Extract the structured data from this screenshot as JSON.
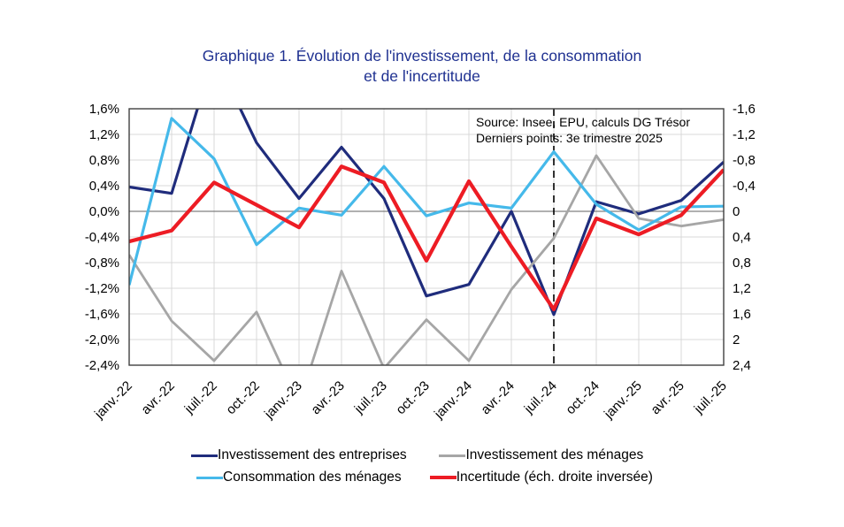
{
  "title": {
    "line1": "Graphique 1. Évolution de l'investissement, de la consommation",
    "line2": "et de l'incertitude"
  },
  "source_box": {
    "line1": "Source: Insee, EPU, calculs DG Trésor",
    "line2": "Derniers points: 3e trimestre 2025"
  },
  "chart_data": {
    "type": "line",
    "categories": [
      "janv.-22",
      "avr.-22",
      "juil.-22",
      "oct.-22",
      "janv.-23",
      "avr.-23",
      "juil.-23",
      "oct.-23",
      "janv.-24",
      "avr.-24",
      "juil.-24",
      "oct.-24",
      "janv.-25",
      "avr.-25",
      "juil.-25"
    ],
    "left_axis": {
      "max": 1.6,
      "min": -2.4,
      "step": 0.4,
      "tick_labels": [
        "1,6%",
        "1,2%",
        "0,8%",
        "0,4%",
        "0,0%",
        "-0,4%",
        "-0,8%",
        "-1,2%",
        "-1,6%",
        "-2,0%",
        "-2,4%"
      ]
    },
    "right_axis": {
      "top_value": -1.6,
      "bottom_value": 2.4,
      "step": 0.4,
      "inverted": true,
      "tick_labels": [
        "-1,6",
        "-1,2",
        "-0,8",
        "-0,4",
        "0",
        "0,4",
        "0,8",
        "1,2",
        "1,6",
        "2",
        "2,4"
      ]
    },
    "grid": true,
    "legend_position": "bottom",
    "dashed_vline_category": "juil.-24",
    "dashed_vline_index": 10,
    "series": [
      {
        "name": "Investissement des entreprises",
        "axis": "left",
        "color": "#1f2c7c",
        "width": 3.2,
        "values": [
          0.38,
          0.28,
          2.45,
          1.07,
          0.2,
          1.0,
          0.2,
          -1.32,
          -1.14,
          0.0,
          -1.61,
          0.15,
          -0.04,
          0.17,
          0.77
        ]
      },
      {
        "name": "Investissement des ménages",
        "axis": "left",
        "color": "#a6a6a6",
        "width": 2.8,
        "values": [
          -0.68,
          -1.71,
          -2.33,
          -1.57,
          -3.0,
          -0.93,
          -2.45,
          -1.69,
          -2.33,
          -1.22,
          -0.42,
          0.87,
          -0.11,
          -0.23,
          -0.13
        ]
      },
      {
        "name": "Consommation des ménages",
        "axis": "left",
        "color": "#45b9ea",
        "width": 3.2,
        "values": [
          -1.15,
          1.45,
          0.82,
          -0.52,
          0.05,
          -0.06,
          0.7,
          -0.07,
          0.13,
          0.05,
          0.93,
          0.11,
          -0.29,
          0.07,
          0.08
        ]
      },
      {
        "name": "Incertitude (éch. droite inversée)",
        "axis": "right",
        "color": "#ed1c24",
        "width": 4.2,
        "values": [
          0.47,
          0.3,
          -0.45,
          -0.1,
          0.25,
          -0.7,
          -0.45,
          0.77,
          -0.47,
          0.55,
          1.53,
          0.11,
          0.36,
          0.06,
          -0.65
        ]
      }
    ],
    "colors": {
      "grid": "#d9d9d9",
      "zero_line": "#808080",
      "frame": "#404040",
      "dashed_line": "#000000",
      "title": "#1f3191"
    }
  }
}
